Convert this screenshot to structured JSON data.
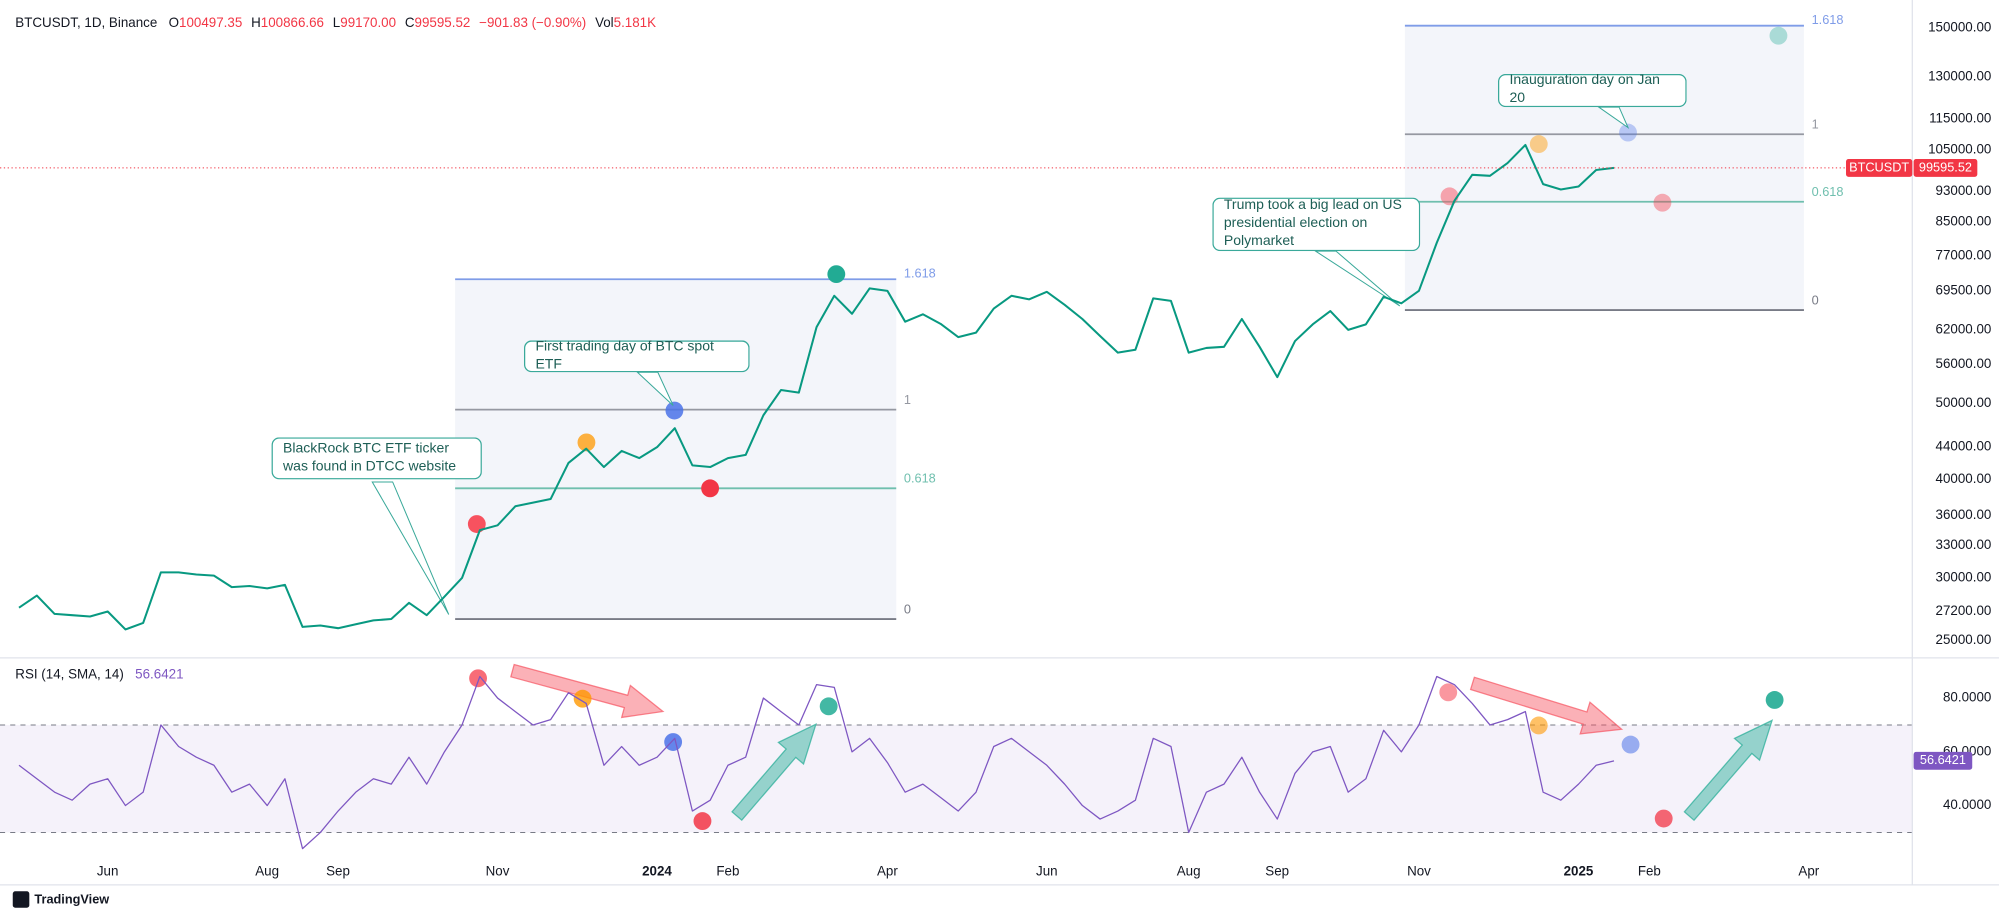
{
  "header": {
    "title": "BTCUSDT, 1D, Binance",
    "ohlc": [
      {
        "key": "O",
        "value": "100497.35"
      },
      {
        "key": "H",
        "value": "100866.66"
      },
      {
        "key": "L",
        "value": "99170.00"
      },
      {
        "key": "C",
        "value": "99595.52"
      }
    ],
    "change": "−901.83 (−0.90%)",
    "volume_key": "Vol",
    "volume": "5.181K"
  },
  "annotations": [
    "BlackRock BTC ETF ticker was found in DTCC website",
    "First trading day of BTC spot ETF",
    "Trump took a big lead on US presidential election on Polymarket",
    "Inauguration day on Jan 20"
  ],
  "branding": "TradingView",
  "chart_data": [
    {
      "type": "line",
      "symbol": "BTCUSDT",
      "log_scale": true,
      "color": "#089981",
      "current_color": "#f23645",
      "categories": [
        null,
        null,
        null,
        null,
        null,
        "Jun",
        null,
        null,
        null,
        null,
        null,
        null,
        null,
        null,
        "Aug",
        null,
        null,
        null,
        "Sep",
        null,
        null,
        null,
        null,
        null,
        null,
        null,
        null,
        "Nov",
        null,
        null,
        null,
        null,
        null,
        null,
        null,
        null,
        "2024",
        null,
        null,
        null,
        "Feb",
        null,
        null,
        null,
        null,
        null,
        null,
        null,
        null,
        "Apr",
        null,
        null,
        null,
        null,
        null,
        null,
        null,
        null,
        "Jun",
        null,
        null,
        null,
        null,
        null,
        null,
        null,
        "Aug",
        null,
        null,
        null,
        null,
        "Sep",
        null,
        null,
        null,
        null,
        null,
        null,
        null,
        "Nov",
        null,
        null,
        null,
        null,
        null,
        null,
        null,
        null,
        "2025",
        null,
        null,
        null,
        "Feb",
        null,
        null,
        null,
        null,
        null,
        null,
        null,
        null,
        "Apr",
        null,
        null,
        null,
        null,
        null
      ],
      "values": [
        27500,
        28500,
        27000,
        26900,
        26800,
        27200,
        25800,
        26300,
        30500,
        30500,
        30300,
        30200,
        29200,
        29300,
        29100,
        29400,
        26000,
        26100,
        25900,
        26200,
        26500,
        26600,
        27900,
        26900,
        28400,
        30000,
        34500,
        35000,
        37000,
        37400,
        37800,
        42000,
        43800,
        41500,
        43500,
        42600,
        44000,
        46500,
        41700,
        41500,
        42600,
        43000,
        48300,
        52000,
        51600,
        62500,
        68500,
        65000,
        70000,
        69500,
        63500,
        64900,
        63100,
        60700,
        61500,
        66000,
        68500,
        67800,
        69300,
        66700,
        64000,
        60900,
        58000,
        58500,
        68000,
        67500,
        58000,
        58800,
        59000,
        64000,
        59000,
        54000,
        60000,
        63000,
        65500,
        62000,
        63000,
        68300,
        67000,
        69500,
        80000,
        90500,
        97600,
        97300,
        101000,
        106500,
        95000,
        93500,
        94300,
        99000,
        99595.52,
        null,
        null,
        null,
        null,
        null,
        null,
        null,
        null,
        null,
        null,
        null,
        null,
        null,
        null,
        null,
        null
      ],
      "ylim": [
        24100,
        158000
      ],
      "yticks": [
        {
          "value": 150000,
          "label": "150000.00"
        },
        {
          "value": 130000,
          "label": "130000.00"
        },
        {
          "value": 115000,
          "label": "115000.00"
        },
        {
          "value": 105000,
          "label": "105000.00"
        },
        {
          "value": 93000,
          "label": "93000.00"
        },
        {
          "value": 85000,
          "label": "85000.00"
        },
        {
          "value": 77000,
          "label": "77000.00"
        },
        {
          "value": 69500,
          "label": "69500.00"
        },
        {
          "value": 62000,
          "label": "62000.00"
        },
        {
          "value": 56000,
          "label": "56000.00"
        },
        {
          "value": 50000,
          "label": "50000.00"
        },
        {
          "value": 44000,
          "label": "44000.00"
        },
        {
          "value": 40000,
          "label": "40000.00"
        },
        {
          "value": 36000,
          "label": "36000.00"
        },
        {
          "value": 33000,
          "label": "33000.00"
        },
        {
          "value": 30000,
          "label": "30000.00"
        },
        {
          "value": 27200,
          "label": "27200.00"
        },
        {
          "value": 25000,
          "label": "25000.00"
        }
      ],
      "grid": true,
      "fibs": [
        {
          "levels": [
            {
              "value": 71900,
              "label": "1.618",
              "color": "#7f9ce8"
            },
            {
              "value": 49100,
              "label": "1",
              "color": "#9598a1"
            },
            {
              "value": 39000,
              "label": "0.618",
              "color": "#6fbfae"
            },
            {
              "value": 26600,
              "label": "0",
              "color": "#787b86"
            }
          ]
        },
        {
          "levels": [
            {
              "value": 151000,
              "label": "1.618",
              "color": "#7f9ce8"
            },
            {
              "value": 109900,
              "label": "1",
              "color": "#9598a1"
            },
            {
              "value": 90200,
              "label": "0.618",
              "color": "#6fbfae"
            },
            {
              "value": 65700,
              "label": "0",
              "color": "#787b86"
            }
          ]
        }
      ]
    },
    {
      "type": "line",
      "title": "RSI (14, SMA, 14)",
      "color": "#7e57c2",
      "values": [
        55,
        50,
        45,
        42,
        48,
        50,
        40,
        45,
        70,
        62,
        58,
        55,
        45,
        48,
        40,
        50,
        24,
        30,
        38,
        45,
        50,
        48,
        58,
        48,
        60,
        70,
        88,
        80,
        75,
        70,
        72,
        82,
        78,
        55,
        62,
        55,
        58,
        65,
        38,
        42,
        55,
        58,
        80,
        75,
        70,
        85,
        84,
        60,
        65,
        56,
        45,
        48,
        43,
        38,
        45,
        62,
        65,
        60,
        55,
        48,
        40,
        35,
        38,
        42,
        65,
        62,
        30,
        45,
        48,
        58,
        45,
        35,
        52,
        60,
        62,
        45,
        50,
        68,
        60,
        70,
        88,
        85,
        78,
        70,
        72,
        75,
        45,
        42,
        48,
        55,
        56.6421,
        null,
        null,
        null,
        null,
        null,
        null,
        null,
        null,
        null,
        null,
        null,
        null,
        null,
        null,
        null,
        null
      ],
      "ylim": [
        20,
        94
      ],
      "yticks": [
        {
          "value": 80,
          "label": "80.0000"
        },
        {
          "value": 60,
          "label": "60.0000"
        },
        {
          "value": 40,
          "label": "40.0000"
        }
      ],
      "band": [
        30,
        70
      ]
    }
  ]
}
